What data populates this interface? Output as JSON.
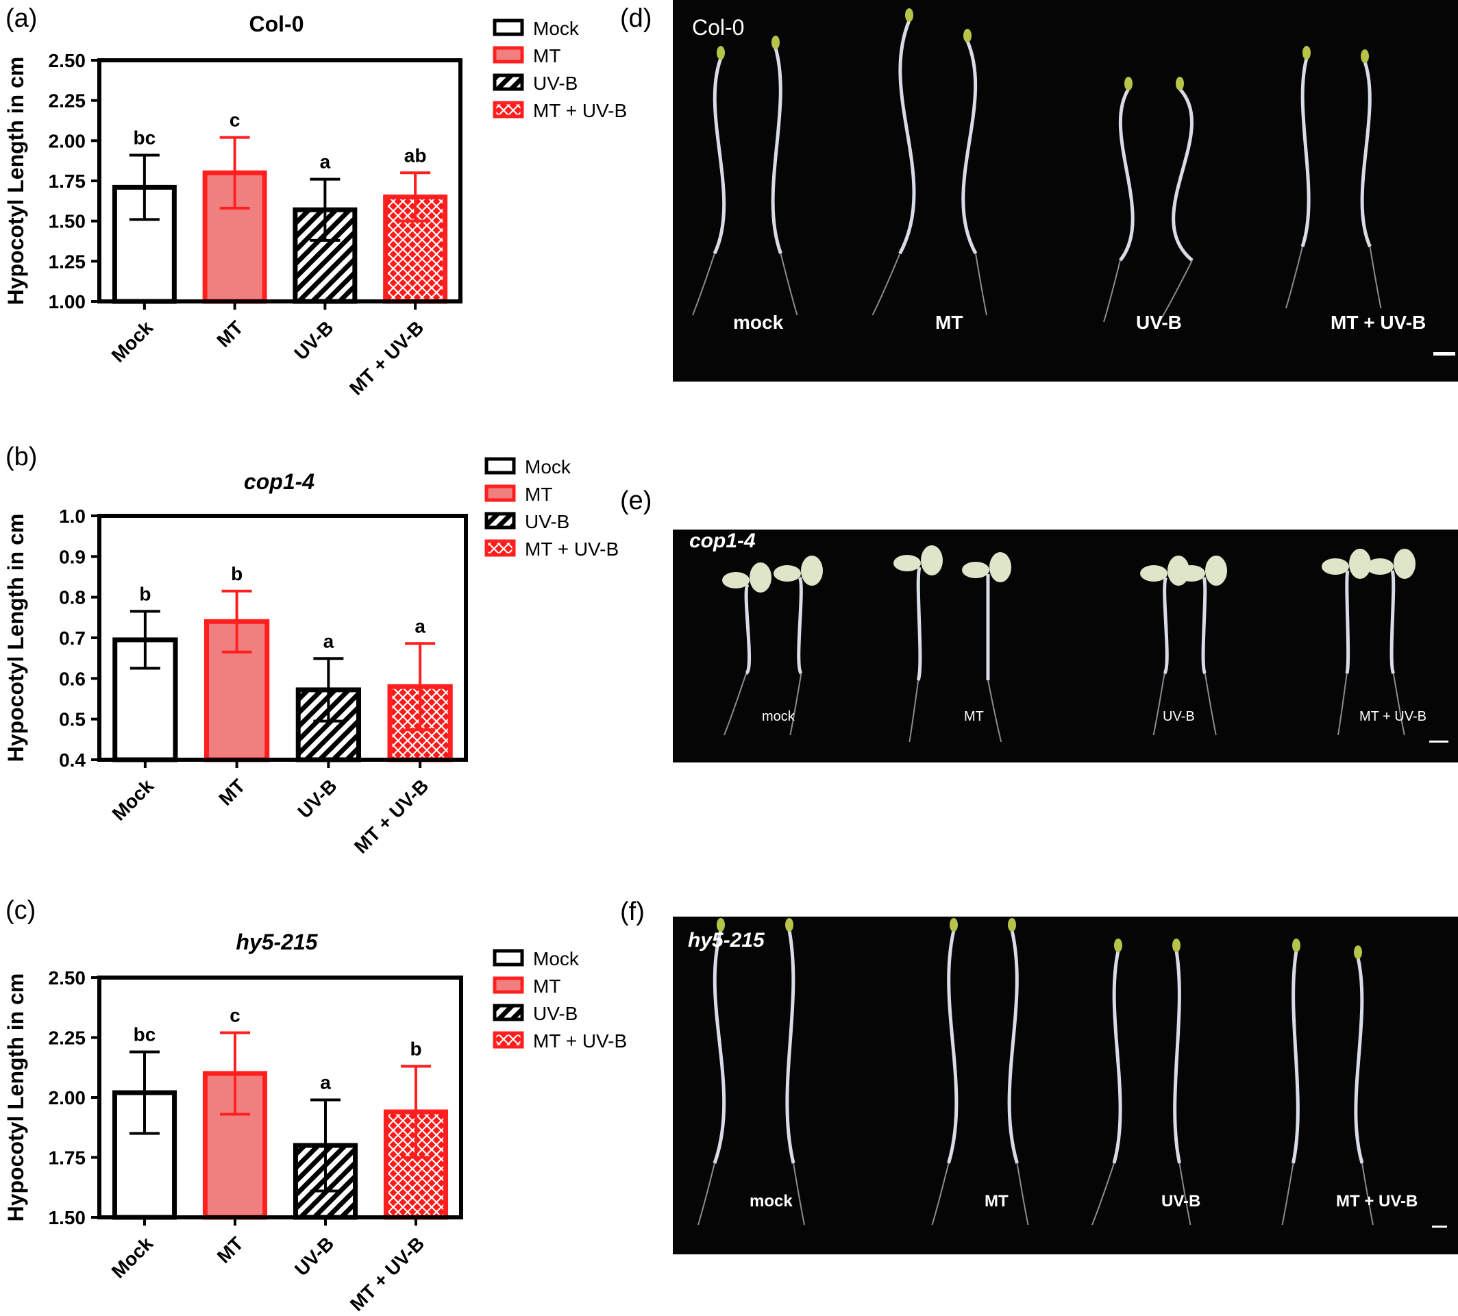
{
  "panel_labels": {
    "a": "(a)",
    "b": "(b)",
    "c": "(c)",
    "d": "(d)",
    "e": "(e)",
    "f": "(f)"
  },
  "colors": {
    "mock": "#ffffff",
    "mt": "#f08080",
    "uvb": "#000000",
    "mt_uvb": "#ff1a1a",
    "red_stroke": "#ff1f1f",
    "photo_bg": "#050505"
  },
  "legend": [
    {
      "label": "Mock",
      "pattern": "mock"
    },
    {
      "label": "MT",
      "pattern": "mt"
    },
    {
      "label": "UV-B",
      "pattern": "hatch"
    },
    {
      "label": "MT + UV-B",
      "pattern": "cross"
    }
  ],
  "chart_data": [
    {
      "type": "bar",
      "title": "Col-0",
      "title_italic": false,
      "ylabel": "Hypocotyl Length in cm",
      "categories": [
        "Mock",
        "MT",
        "UV-B",
        "MT + UV-B"
      ],
      "values": [
        1.71,
        1.8,
        1.57,
        1.65
      ],
      "errors": [
        0.2,
        0.22,
        0.19,
        0.15
      ],
      "letters": [
        "bc",
        "c",
        "a",
        "ab"
      ],
      "ylim": [
        1.0,
        2.5
      ],
      "yticks": [
        "1.00",
        "1.25",
        "1.50",
        "1.75",
        "2.00",
        "2.25",
        "2.50"
      ],
      "legend_placement": "right"
    },
    {
      "type": "bar",
      "title": "cop1-4",
      "title_italic": true,
      "ylabel": "Hypocotyl Length in cm",
      "categories": [
        "Mock",
        "MT",
        "UV-B",
        "MT + UV-B"
      ],
      "values": [
        0.695,
        0.74,
        0.572,
        0.58
      ],
      "errors": [
        0.07,
        0.075,
        0.077,
        0.106
      ],
      "letters": [
        "b",
        "b",
        "a",
        "a"
      ],
      "ylim": [
        0.4,
        1.0
      ],
      "yticks": [
        "0.4",
        "0.5",
        "0.6",
        "0.7",
        "0.8",
        "0.9",
        "1.0"
      ],
      "legend_placement": "right"
    },
    {
      "type": "bar",
      "title": "hy5-215",
      "title_italic": true,
      "ylabel": "Hypocotyl Length in cm",
      "categories": [
        "Mock",
        "MT",
        "UV-B",
        "MT + UV-B"
      ],
      "values": [
        2.02,
        2.1,
        1.8,
        1.94
      ],
      "errors": [
        0.17,
        0.17,
        0.19,
        0.19
      ],
      "letters": [
        "bc",
        "c",
        "a",
        "b"
      ],
      "ylim": [
        1.5,
        2.5
      ],
      "yticks": [
        "1.50",
        "1.75",
        "2.00",
        "2.25",
        "2.50"
      ],
      "legend_placement": "right"
    }
  ],
  "photos": [
    {
      "title": "Col-0",
      "title_italic": false,
      "labels": [
        "mock",
        "MT",
        "UV-B",
        "MT + UV-B"
      ]
    },
    {
      "title": "cop1-4",
      "title_italic": true,
      "labels": [
        "mock",
        "MT",
        "UV-B",
        "MT + UV-B"
      ]
    },
    {
      "title": "hy5-215",
      "title_italic": true,
      "labels": [
        "mock",
        "MT",
        "UV-B",
        "MT + UV-B"
      ]
    }
  ]
}
